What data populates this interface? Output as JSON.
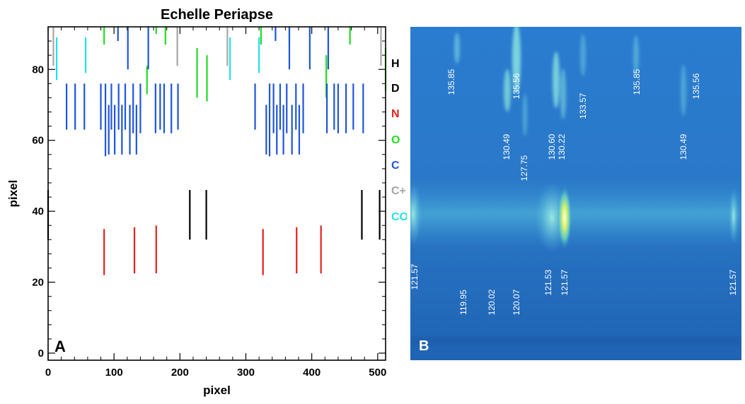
{
  "panel_a": {
    "label": "A",
    "chart_data": {
      "type": "line-segments",
      "title": "Echelle Periapse",
      "xlabel": "pixel",
      "ylabel": "pixel",
      "xlim": [
        0,
        512
      ],
      "ylim": [
        -2,
        92
      ],
      "xticks": [
        0,
        100,
        200,
        300,
        400,
        500
      ],
      "yticks": [
        0,
        20,
        40,
        60,
        80
      ],
      "legend": [
        {
          "name": "H",
          "color": "#000000"
        },
        {
          "name": "D",
          "color": "#000000"
        },
        {
          "name": "N",
          "color": "#e3211c"
        },
        {
          "name": "O",
          "color": "#22dd22"
        },
        {
          "name": "C",
          "color": "#1f55d8"
        },
        {
          "name": "C+",
          "color": "#a6a6a6"
        },
        {
          "name": "CO",
          "color": "#22e0e8"
        }
      ],
      "series": [
        {
          "name": "H",
          "color": "#000000",
          "segments": [
            [
              215,
              32,
              46
            ],
            [
              240,
              32,
              46
            ],
            [
              476,
              32,
              46
            ],
            [
              503,
              32,
              46
            ],
            [
              0,
              32,
              46
            ]
          ]
        },
        {
          "name": "N",
          "color": "#e3211c",
          "segments": [
            [
              85,
              22,
              35
            ],
            [
              131,
              22.5,
              35.5
            ],
            [
              164,
              22.5,
              36
            ],
            [
              326,
              22,
              35
            ],
            [
              377,
              22.5,
              35.5
            ],
            [
              414,
              22.5,
              36
            ]
          ]
        },
        {
          "name": "O",
          "color": "#22dd22",
          "segments": [
            [
              85,
              87,
              92
            ],
            [
              150,
              73,
              81
            ],
            [
              164,
              90,
              92
            ],
            [
              178,
              87,
              92
            ],
            [
              226,
              72,
              86
            ],
            [
              241,
              71,
              84
            ],
            [
              323,
              87,
              92
            ],
            [
              366,
              87,
              92
            ],
            [
              422,
              72,
              84
            ],
            [
              458,
              87,
              92
            ],
            [
              512,
              74,
              86
            ]
          ]
        },
        {
          "name": "C",
          "color": "#1f55d8",
          "segments": [
            [
              28,
              63,
              76
            ],
            [
              41,
              63,
              76
            ],
            [
              55,
              63,
              76
            ],
            [
              80,
              63,
              76
            ],
            [
              87,
              55.5,
              76
            ],
            [
              92,
              56,
              70
            ],
            [
              96,
              63,
              76
            ],
            [
              101,
              56,
              70
            ],
            [
              107,
              63,
              76
            ],
            [
              112,
              56,
              70
            ],
            [
              117,
              63,
              76
            ],
            [
              124,
              56,
              70
            ],
            [
              129,
              62,
              76
            ],
            [
              134,
              56,
              70
            ],
            [
              140,
              62,
              76
            ],
            [
              163,
              62,
              76
            ],
            [
              170,
              63,
              76
            ],
            [
              176,
              62,
              76
            ],
            [
              187,
              62,
              76
            ],
            [
              197,
              63,
              76
            ],
            [
              314,
              63,
              76
            ],
            [
              331,
              56,
              70
            ],
            [
              336,
              55.5,
              76
            ],
            [
              342,
              62,
              76
            ],
            [
              347,
              56,
              70
            ],
            [
              352,
              63,
              76
            ],
            [
              357,
              56,
              70
            ],
            [
              362,
              62,
              76
            ],
            [
              370,
              56,
              70
            ],
            [
              376,
              63,
              76
            ],
            [
              381,
              56,
              70
            ],
            [
              387,
              62,
              76
            ],
            [
              423,
              62,
              76
            ],
            [
              434,
              63,
              76
            ],
            [
              440,
              62,
              76
            ],
            [
              452,
              62,
              76
            ],
            [
              463,
              63,
              76
            ],
            [
              478,
              62,
              76
            ],
            [
              106,
              88,
              92
            ],
            [
              121,
              80,
              92
            ],
            [
              152,
              80,
              92
            ],
            [
              345,
              88,
              92
            ],
            [
              366,
              80,
              92
            ],
            [
              397,
              80,
              92
            ],
            [
              425,
              80,
              92
            ]
          ]
        },
        {
          "name": "C+",
          "color": "#a6a6a6",
          "segments": [
            [
              8,
              81,
              92
            ],
            [
              196,
              81,
              92
            ],
            [
              272,
              81,
              92
            ],
            [
              505,
              81,
              92
            ]
          ]
        },
        {
          "name": "CO",
          "color": "#22e0e8",
          "segments": [
            [
              13,
              77,
              89
            ],
            [
              57,
              79,
              89
            ],
            [
              276,
              77,
              89
            ],
            [
              320,
              79,
              89
            ]
          ]
        }
      ]
    }
  },
  "panel_b": {
    "label": "B",
    "image_labels": [
      "135.85",
      "135.56",
      "130.49",
      "127.75",
      "130.60",
      "130.22",
      "133.57",
      "135.85",
      "135.56",
      "130.49",
      "121.57",
      "119.95",
      "120.02",
      "120.07",
      "121.53",
      "121.57",
      "121.57"
    ]
  }
}
